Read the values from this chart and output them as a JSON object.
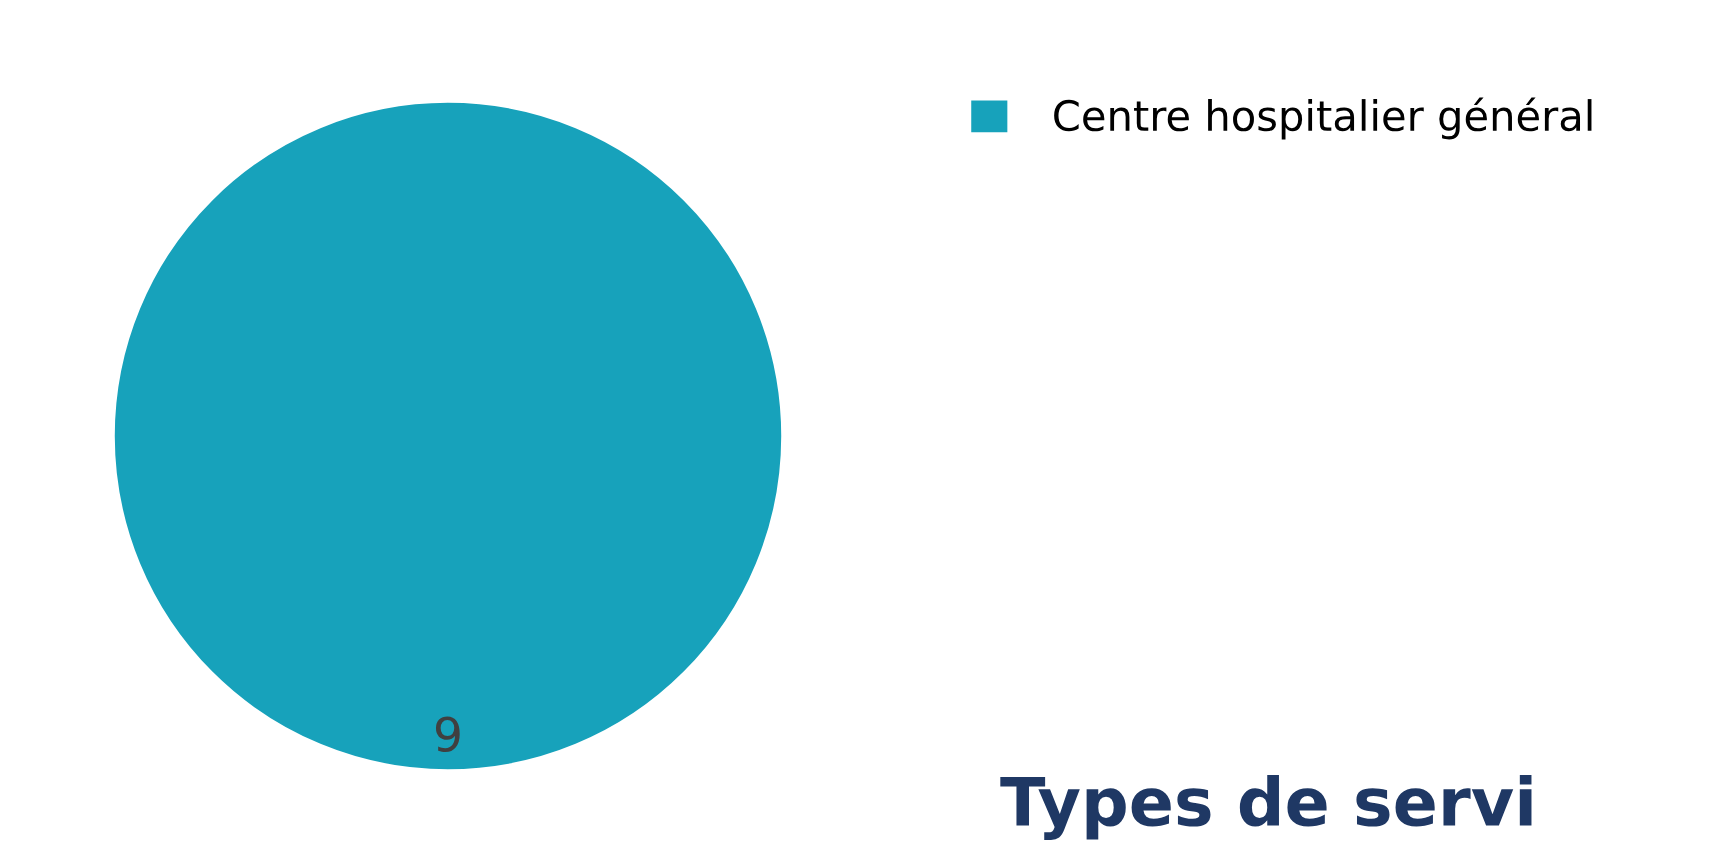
{
  "chart_data": {
    "type": "pie",
    "title": "Types de servi",
    "categories": [
      "Centre hospitalier général"
    ],
    "values": [
      9
    ],
    "colors": [
      "#17a2bb"
    ],
    "data_labels": true,
    "legend": "top right"
  }
}
